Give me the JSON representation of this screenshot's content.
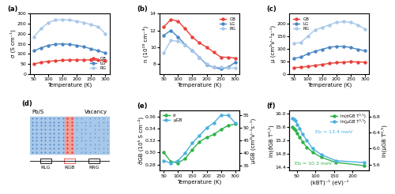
{
  "chart_data": [
    {
      "type": "line",
      "title": "(a)",
      "xlabel": "Temperature (K)",
      "ylabel": "σ (S cm⁻¹)",
      "x": [
        50,
        75,
        100,
        125,
        150,
        175,
        200,
        225,
        250,
        275,
        300
      ],
      "series": [
        {
          "name": "GB",
          "color": "#e8403a",
          "marker": "o",
          "values": [
            50,
            58,
            63,
            66,
            68,
            70,
            70,
            70,
            70,
            68,
            66
          ]
        },
        {
          "name": "LG",
          "color": "#4a86c5",
          "marker": "o",
          "values": [
            115,
            130,
            142,
            148,
            150,
            147,
            142,
            135,
            125,
            115,
            105
          ]
        },
        {
          "name": "RG",
          "color": "#a8c8ea",
          "marker": "o",
          "values": [
            185,
            225,
            255,
            268,
            270,
            268,
            262,
            255,
            245,
            235,
            200
          ]
        }
      ],
      "xlim": [
        35,
        315
      ],
      "xticks": [
        50,
        100,
        150,
        200,
        250,
        300
      ],
      "ylim": [
        0,
        300
      ],
      "yticks": [
        0,
        50,
        100,
        150,
        200,
        250,
        300
      ],
      "legend": "lower right"
    },
    {
      "type": "line",
      "title": "(b)",
      "xlabel": "Temperature (K)",
      "ylabel": "n (10¹⁶ cm⁻³)",
      "x": [
        50,
        75,
        100,
        125,
        150,
        175,
        200,
        225,
        250,
        275,
        300
      ],
      "series": [
        {
          "name": "GB",
          "color": "#e8403a",
          "marker": "o",
          "values": [
            12.4,
            13.3,
            13.1,
            12.2,
            11.2,
            10.5,
            10.0,
            9.4,
            8.8,
            8.8,
            8.7
          ]
        },
        {
          "name": "LG",
          "color": "#4a86c5",
          "marker": "o",
          "values": [
            11.4,
            12.0,
            11.2,
            10.3,
            9.6,
            8.8,
            7.9,
            7.6,
            7.4,
            7.6,
            8.2
          ]
        },
        {
          "name": "RG",
          "color": "#a8c8ea",
          "marker": "o",
          "values": [
            9.3,
            10.8,
            10.7,
            10.3,
            9.6,
            8.8,
            8.0,
            7.6,
            7.6,
            7.5,
            7.5
          ]
        }
      ],
      "xlim": [
        35,
        315
      ],
      "xticks": [
        50,
        100,
        150,
        200,
        250,
        300
      ],
      "ylim": [
        6.8,
        14
      ],
      "yticks": [
        8,
        10,
        12,
        14
      ],
      "legend": "upper right"
    },
    {
      "type": "line",
      "title": "(c)",
      "xlabel": "Temperature (K)",
      "ylabel": "μ (cm²V⁻¹s⁻¹)",
      "x": [
        50,
        75,
        100,
        125,
        150,
        175,
        200,
        225,
        250,
        275,
        300
      ],
      "series": [
        {
          "name": "GB",
          "color": "#e8403a",
          "marker": "o",
          "values": [
            25,
            27,
            30,
            34,
            38,
            42,
            45,
            47,
            49,
            48,
            47
          ]
        },
        {
          "name": "LG",
          "color": "#4a86c5",
          "marker": "o",
          "values": [
            62,
            67,
            80,
            90,
            98,
            106,
            110,
            110,
            105,
            98,
            92
          ]
        },
        {
          "name": "RG",
          "color": "#a8c8ea",
          "marker": "o",
          "values": [
            122,
            125,
            150,
            175,
            185,
            195,
            205,
            208,
            205,
            195,
            178
          ]
        }
      ],
      "xlim": [
        35,
        315
      ],
      "xticks": [
        50,
        100,
        150,
        200,
        250,
        300
      ],
      "ylim": [
        0,
        240
      ],
      "yticks": [
        0,
        50,
        100,
        150,
        200
      ],
      "legend": "upper left"
    },
    {
      "type": "line",
      "title": "(e)",
      "xlabel": "Temperature (K)",
      "ylabel": "σ̃GB (10⁵ S cm⁻²)",
      "y2label": "μGB (cm²V⁻¹s⁻¹)",
      "x": [
        50,
        75,
        100,
        125,
        150,
        175,
        200,
        225,
        250,
        275,
        300
      ],
      "series": [
        {
          "name": "σ̃",
          "color": "#2db34a",
          "marker": "o",
          "values": [
            0.3,
            0.285,
            0.283,
            0.29,
            0.305,
            0.318,
            0.325,
            0.33,
            0.338,
            0.345,
            0.347
          ]
        },
        {
          "name": "μGB",
          "color": "#4ab0e0",
          "marker": "o",
          "axis": "y2",
          "values": [
            37,
            36,
            37,
            40,
            44,
            47,
            50,
            52,
            55,
            55,
            52
          ]
        }
      ],
      "xlim": [
        35,
        315
      ],
      "xticks": [
        50,
        100,
        150,
        200,
        250,
        300
      ],
      "ylim": [
        0.27,
        0.37
      ],
      "yticks": [
        0.28,
        {
          "value": 0.3,
          "label": "0.30"
        },
        0.32,
        0.34,
        0.36
      ],
      "y2lim": [
        33,
        57
      ],
      "y2ticks": [
        35,
        40,
        45,
        50,
        55
      ],
      "legend": "upper left"
    },
    {
      "type": "line",
      "title": "(f)",
      "xlabel": "(kBT)⁻¹ (eV)⁻¹",
      "ylabel": "ln(σ̃GB T⁰·⁵)",
      "y2label": "ln(μGB T⁰·⁵)",
      "x": [
        38.7,
        42.2,
        46.4,
        51.6,
        58.0,
        66.3,
        77.4,
        92.8,
        116.0,
        154.7,
        232.1
      ],
      "series": [
        {
          "name": "ln(σ̃GB T⁰·⁵)",
          "color": "#2db34a",
          "marker": "o",
          "values": [
            15.6,
            15.55,
            15.5,
            15.42,
            15.3,
            15.15,
            15.0,
            14.85,
            14.7,
            14.55,
            14.45
          ]
        },
        {
          "name": "ln(μGB T⁰·⁵)",
          "color": "#4ab0e0",
          "marker": "o",
          "axis": "y2",
          "values": [
            6.75,
            6.73,
            6.7,
            6.6,
            6.5,
            6.35,
            6.2,
            6.0,
            5.85,
            5.7,
            5.65
          ]
        }
      ],
      "xlim": [
        30,
        245
      ],
      "xticks": [
        50,
        100,
        150,
        200
      ],
      "ylim": [
        14.3,
        16.1
      ],
      "yticks": [
        14.4,
        14.8,
        15.2,
        15.6,
        16.0
      ],
      "y2lim": [
        5.45,
        6.95
      ],
      "y2ticks": [
        5.6,
        6.0,
        6.4,
        6.8
      ],
      "legend": "upper right",
      "annotations": [
        {
          "text": "Eb = 13.4 meV",
          "color": "#4ab0e0"
        },
        {
          "text": "Eb = 10.3 meV",
          "color": "#2db34a"
        }
      ]
    }
  ],
  "diagram": {
    "title": "(d)",
    "left_label": "Pb/S",
    "right_label": "Vacancy",
    "resistors": [
      "RLG",
      "RGB",
      "RRG"
    ]
  }
}
